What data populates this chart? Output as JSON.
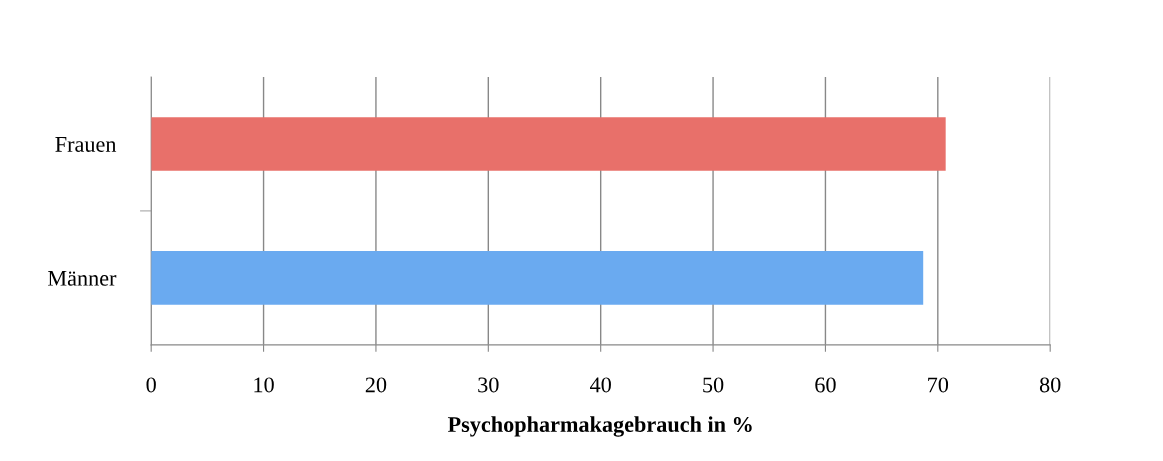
{
  "chart_data": {
    "type": "bar",
    "orientation": "horizontal",
    "categories": [
      "Frauen",
      "Männer"
    ],
    "values": [
      70.7,
      68.7
    ],
    "colors": [
      "#e8706a",
      "#6aaaf0"
    ],
    "xlabel": "Psychopharmakagebrauch in %",
    "xlim": [
      0,
      80
    ],
    "xticks": [
      0,
      10,
      20,
      30,
      40,
      50,
      60,
      70,
      80
    ],
    "grid": "x",
    "legend": false
  }
}
